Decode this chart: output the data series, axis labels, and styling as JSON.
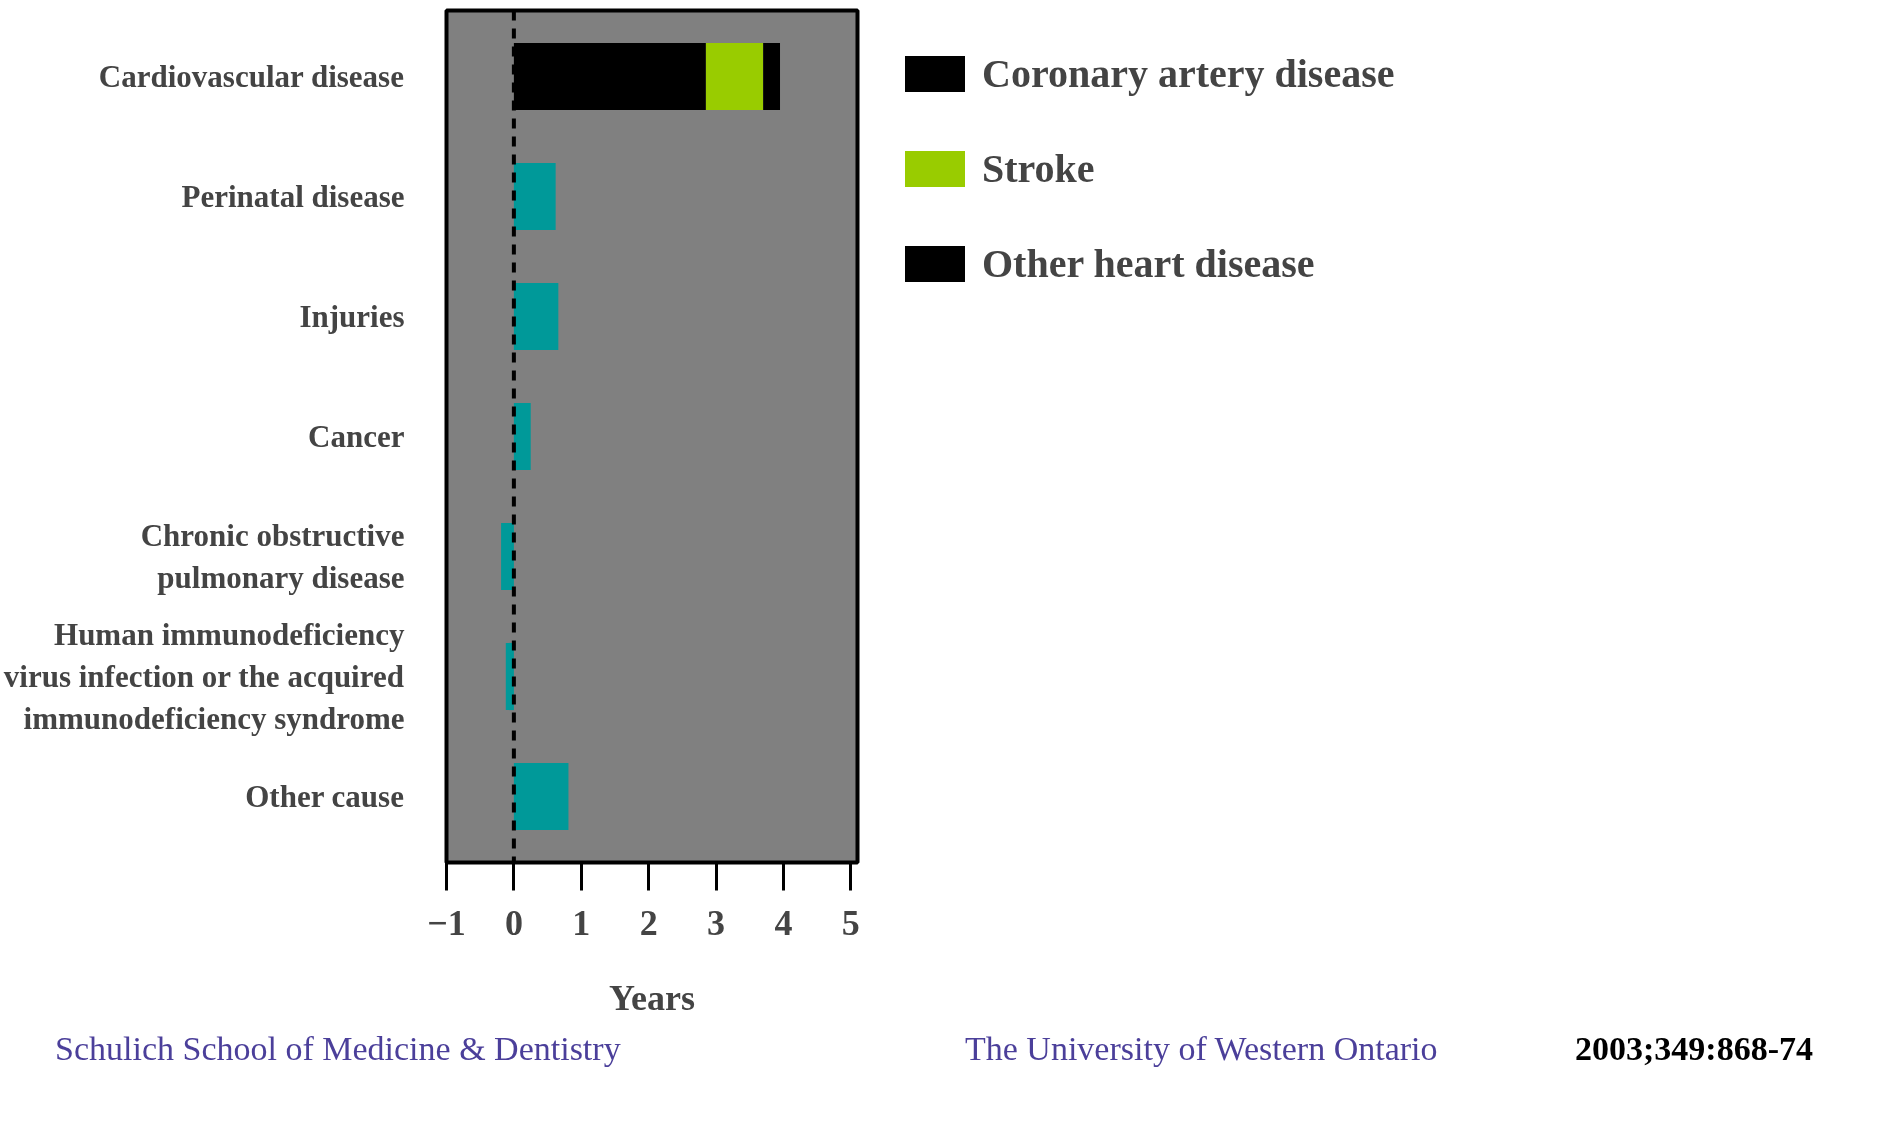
{
  "chart_data": {
    "type": "bar",
    "orientation": "horizontal",
    "stacked": true,
    "xlabel": "Years",
    "categories": [
      "Cardiovascular disease",
      "Perinatal disease",
      "Injuries",
      "Cancer",
      "Chronic obstructive\npulmonary disease",
      "Human immunodeficiency\nvirus infection or the acquired\nimmunodeficiency syndrome",
      "Other cause"
    ],
    "series": [
      {
        "name": "Coronary artery disease",
        "color": "#000000",
        "values": [
          2.85,
          null,
          null,
          null,
          null,
          null,
          null
        ]
      },
      {
        "name": "Stroke",
        "color": "#99cc00",
        "values": [
          0.85,
          null,
          null,
          null,
          null,
          null,
          null
        ]
      },
      {
        "name": "Other heart disease",
        "color": "#000000",
        "values": [
          0.25,
          null,
          null,
          null,
          null,
          null,
          null
        ]
      },
      {
        "color": "#009999",
        "values": [
          null,
          0.62,
          0.66,
          0.25,
          -0.19,
          -0.12,
          0.81
        ]
      }
    ],
    "xlim": [
      -1,
      5.1
    ],
    "xticks": [
      -1,
      0,
      1,
      2,
      3,
      4,
      5
    ],
    "ref_lines": [
      {
        "axis": "x",
        "value": 0,
        "color": "#000000",
        "line_style": "dashed"
      }
    ],
    "grid": false,
    "legend": "right",
    "annotations": [
      "Schulich School of Medicine & Dentistry",
      "The University of Western Ontario",
      "2003;349:868-74"
    ]
  }
}
